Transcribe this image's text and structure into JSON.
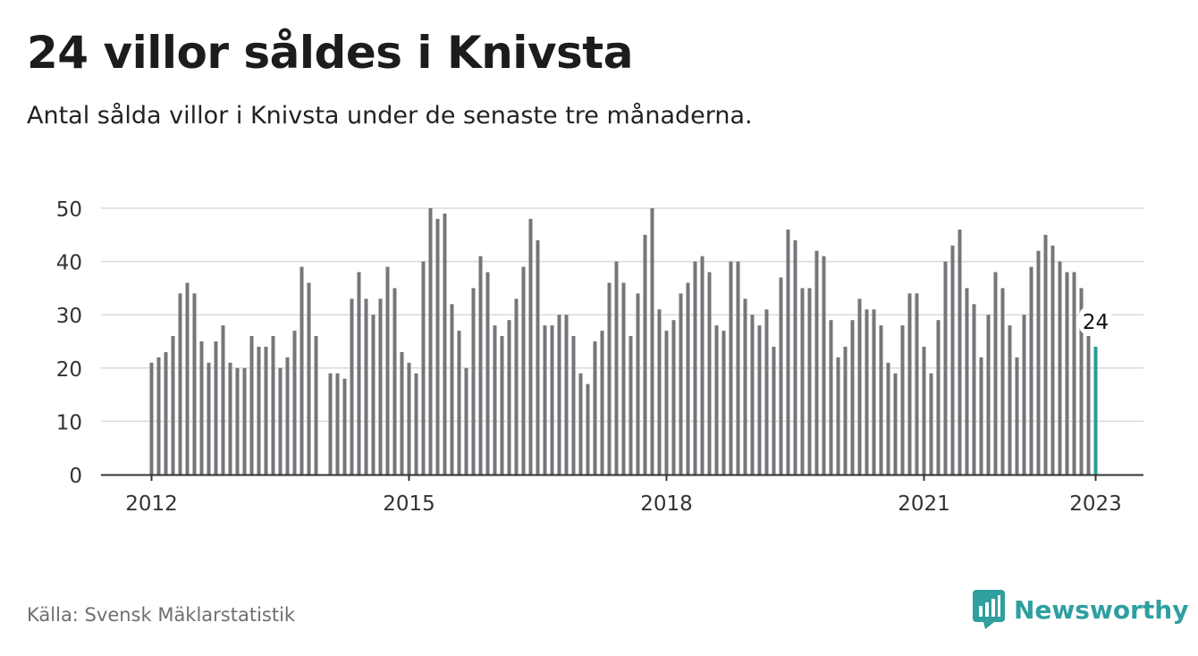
{
  "header": {
    "title": "24 villor såldes i Knivsta",
    "subtitle": "Antal sålda villor i Knivsta under de senaste tre månaderna."
  },
  "footer": {
    "source": "Källa: Svensk Mäklarstatistik",
    "brand": "Newsworthy",
    "brand_icon": "newsworthy-logo-icon"
  },
  "colors": {
    "bar": "#75757a",
    "highlight": "#2a9d96",
    "grid": "#dadada",
    "axis": "#333333",
    "brand": "#2f9fa0"
  },
  "chart_data": {
    "type": "bar",
    "title": "24 villor såldes i Knivsta",
    "xlabel": "",
    "ylabel": "",
    "x_start": "2012-01",
    "x_ticks": [
      "2012",
      "2015",
      "2018",
      "2021",
      "2023"
    ],
    "y_ticks": [
      "0",
      "10",
      "20",
      "30",
      "40",
      "50"
    ],
    "ylim": [
      0,
      50
    ],
    "grid": true,
    "highlight_label": "24",
    "values": [
      21,
      22,
      23,
      26,
      34,
      36,
      34,
      25,
      21,
      25,
      28,
      21,
      20,
      20,
      26,
      24,
      24,
      26,
      20,
      22,
      27,
      39,
      36,
      26,
      null,
      19,
      19,
      18,
      33,
      38,
      33,
      30,
      33,
      39,
      35,
      23,
      21,
      19,
      40,
      50,
      48,
      49,
      32,
      27,
      20,
      35,
      41,
      38,
      28,
      26,
      29,
      33,
      39,
      48,
      44,
      28,
      28,
      30,
      30,
      26,
      19,
      17,
      25,
      27,
      36,
      40,
      36,
      26,
      34,
      45,
      50,
      31,
      27,
      29,
      34,
      36,
      40,
      41,
      38,
      28,
      27,
      40,
      40,
      33,
      30,
      28,
      31,
      24,
      37,
      46,
      44,
      35,
      35,
      42,
      41,
      29,
      22,
      24,
      29,
      33,
      31,
      31,
      28,
      21,
      19,
      28,
      34,
      34,
      24,
      19,
      29,
      40,
      43,
      46,
      35,
      32,
      22,
      30,
      38,
      35,
      28,
      22,
      30,
      39,
      42,
      45,
      43,
      40,
      38,
      38,
      35,
      26,
      24
    ]
  }
}
